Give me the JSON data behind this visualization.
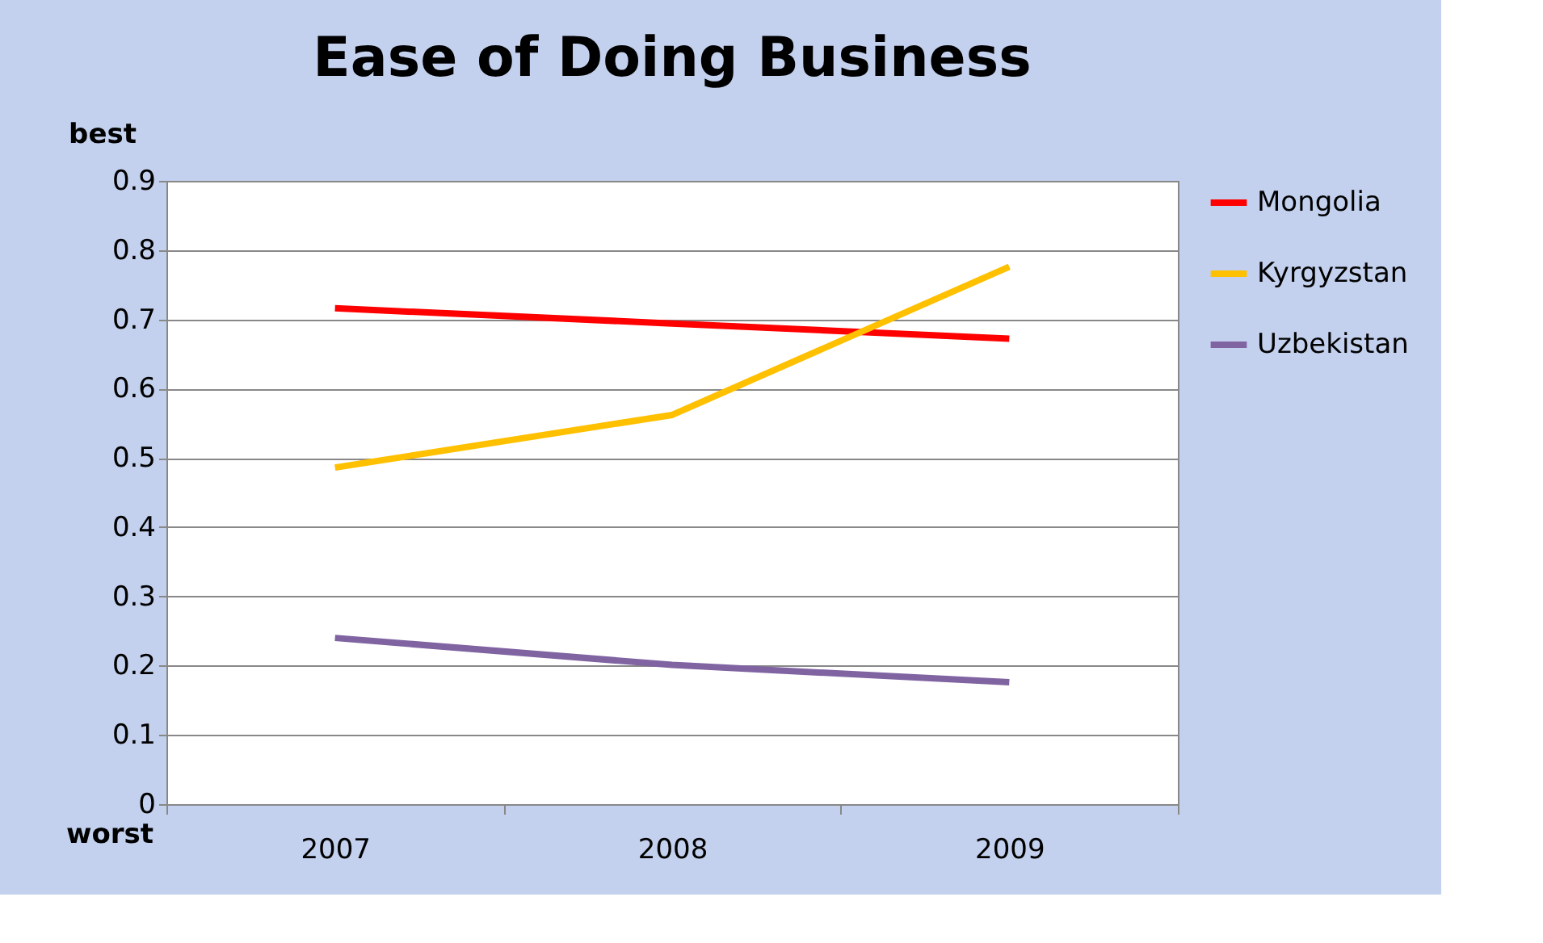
{
  "chart_data": {
    "type": "line",
    "title": "Ease of Doing Business",
    "ylabel": "best",
    "annotations": [
      "worst"
    ],
    "categories": [
      "2007",
      "2008",
      "2009"
    ],
    "series": [
      {
        "name": "Mongolia",
        "color": "#ff0000",
        "values": [
          0.716,
          0.694,
          0.672
        ]
      },
      {
        "name": "Kyrgyzstan",
        "color": "#ffc000",
        "values": [
          0.486,
          0.562,
          0.776
        ]
      },
      {
        "name": "Uzbekistan",
        "color": "#8064a2",
        "values": [
          0.24,
          0.201,
          0.176
        ]
      }
    ],
    "ylim": [
      0,
      0.9
    ],
    "yticks": [
      0,
      0.1,
      0.2,
      0.3,
      0.4,
      0.5,
      0.6,
      0.7,
      0.8,
      0.9
    ],
    "grid": "y",
    "legend": "right",
    "marker": "none",
    "line_style": "solid"
  }
}
